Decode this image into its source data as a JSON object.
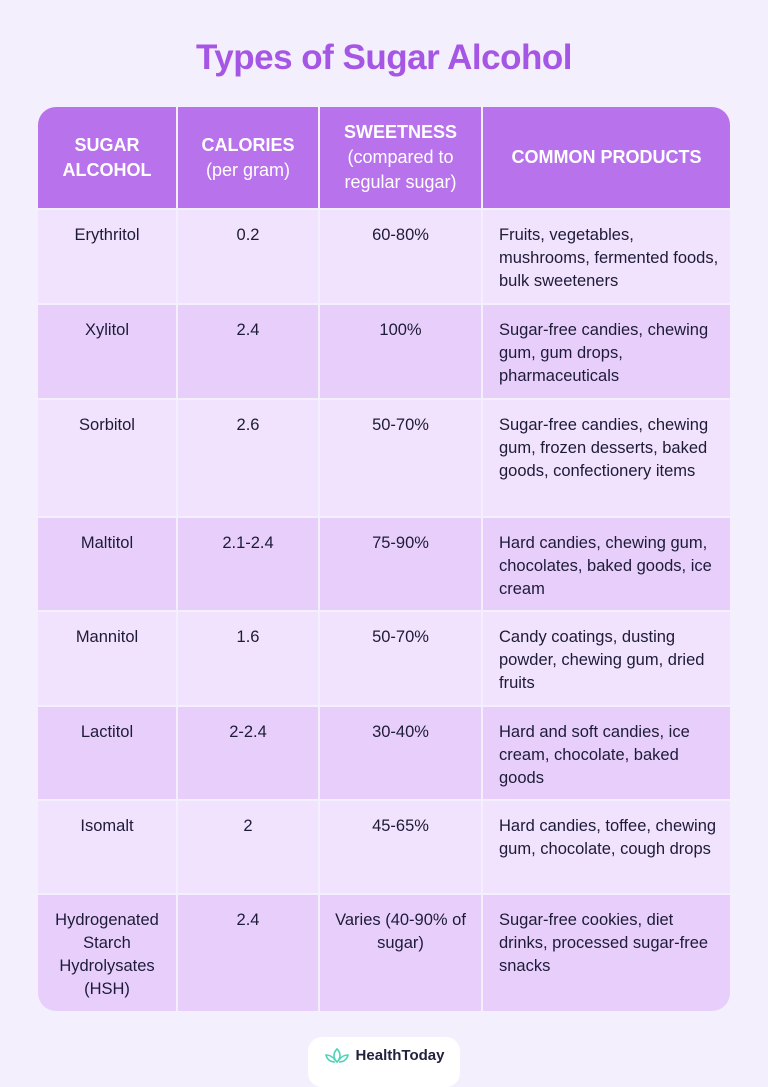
{
  "title": "Types of Sugar Alcohol",
  "colors": {
    "title": "#a656e4",
    "header_bg": "#b872ec",
    "row_light": "#f1e2fd",
    "row_dark": "#e8cffb",
    "background": "#f4effc"
  },
  "headers": [
    {
      "main": "SUGAR ALCOHOL",
      "sub": ""
    },
    {
      "main": "CALORIES",
      "sub": "(per gram)"
    },
    {
      "main": "SWEETNESS",
      "sub": "(compared to regular sugar)"
    },
    {
      "main": "COMMON PRODUCTS",
      "sub": ""
    }
  ],
  "rows": [
    [
      "Erythritol",
      "0.2",
      "60-80%",
      "Fruits, vegetables, mushrooms, fermented foods, bulk sweeteners"
    ],
    [
      "Xylitol",
      "2.4",
      "100%",
      "Sugar-free candies, chewing gum, gum drops, pharmaceuticals"
    ],
    [
      "Sorbitol",
      "2.6",
      "50-70%",
      "Sugar-free candies, chewing gum, frozen desserts, baked goods, confectionery items"
    ],
    [
      "Maltitol",
      "2.1-2.4",
      "75-90%",
      "Hard candies, chewing gum, chocolates, baked goods, ice cream"
    ],
    [
      "Mannitol",
      "1.6",
      "50-70%",
      "Candy coatings, dusting powder, chewing gum, dried fruits"
    ],
    [
      "Lactitol",
      "2-2.4",
      "30-40%",
      "Hard and soft candies, ice cream, chocolate, baked goods"
    ],
    [
      "Isomalt",
      "2",
      "45-65%",
      "Hard candies, toffee, chewing gum, chocolate, cough drops"
    ],
    [
      "Hydrogenated Starch Hydrolysates (HSH)",
      "2.4",
      "Varies (40-90% of sugar)",
      "Sugar-free cookies, diet drinks, processed sugar-free snacks"
    ]
  ],
  "footer": {
    "brand": "HealthToday",
    "icon": "lotus-icon"
  }
}
